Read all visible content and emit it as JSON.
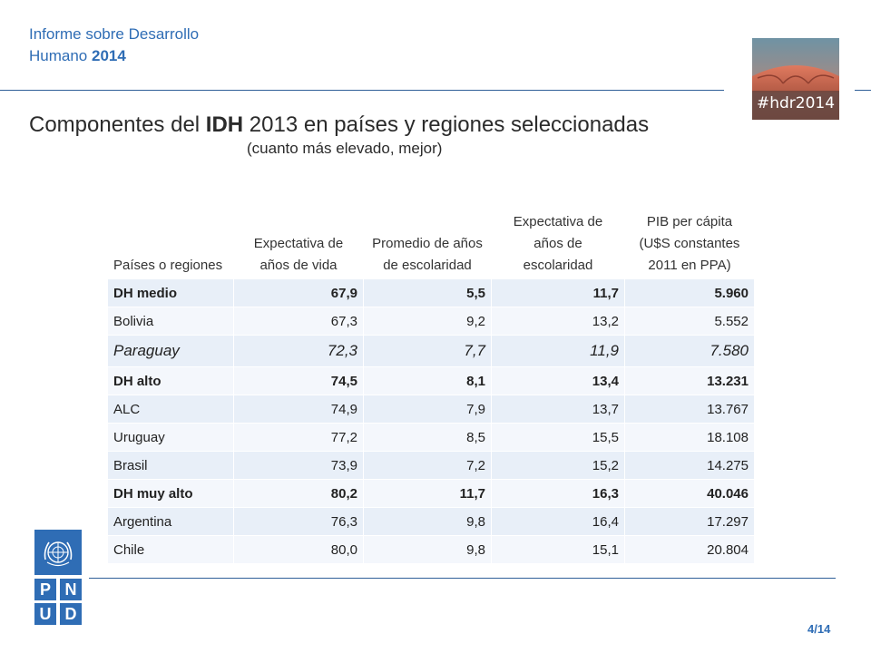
{
  "header": {
    "report_title_line1": "Informe sobre Desarrollo",
    "report_title_line2_prefix": "Humano ",
    "report_title_year": "2014",
    "badge_label": "#hdr2014"
  },
  "slide": {
    "title_prefix": "Componentes del ",
    "title_bold": "IDH",
    "title_suffix": " 2013 en países y regiones seleccionadas",
    "subtitle": "(cuanto más elevado, mejor)"
  },
  "table": {
    "headers": [
      "Países o regiones",
      "Expectativa de años de vida",
      "Promedio de años de escolaridad",
      "Expectativa de años de escolaridad",
      "PIB per cápita (U$S constantes 2011 en PPA)"
    ],
    "rows": [
      {
        "name": "DH medio",
        "life": "67,9",
        "mean_school": "5,5",
        "exp_school": "11,7",
        "gdp": "5.960",
        "style": "bold"
      },
      {
        "name": "Bolivia",
        "life": "67,3",
        "mean_school": "9,2",
        "exp_school": "13,2",
        "gdp": "5.552",
        "style": "normal"
      },
      {
        "name": "Paraguay",
        "life": "72,3",
        "mean_school": "7,7",
        "exp_school": "11,9",
        "gdp": "7.580",
        "style": "italic"
      },
      {
        "name": "DH alto",
        "life": "74,5",
        "mean_school": "8,1",
        "exp_school": "13,4",
        "gdp": "13.231",
        "style": "bold"
      },
      {
        "name": "ALC",
        "life": "74,9",
        "mean_school": "7,9",
        "exp_school": "13,7",
        "gdp": "13.767",
        "style": "normal"
      },
      {
        "name": "Uruguay",
        "life": "77,2",
        "mean_school": "8,5",
        "exp_school": "15,5",
        "gdp": "18.108",
        "style": "normal"
      },
      {
        "name": "Brasil",
        "life": "73,9",
        "mean_school": "7,2",
        "exp_school": "15,2",
        "gdp": "14.275",
        "style": "normal"
      },
      {
        "name": "DH muy alto",
        "life": "80,2",
        "mean_school": "11,7",
        "exp_school": "16,3",
        "gdp": "40.046",
        "style": "bold"
      },
      {
        "name": "Argentina",
        "life": "76,3",
        "mean_school": "9,8",
        "exp_school": "16,4",
        "gdp": "17.297",
        "style": "normal"
      },
      {
        "name": "Chile",
        "life": "80,0",
        "mean_school": "9,8",
        "exp_school": "15,1",
        "gdp": "20.804",
        "style": "normal"
      }
    ]
  },
  "logo": {
    "letters": [
      "P",
      "N",
      "U",
      "D"
    ],
    "brand_color": "#2f6db5"
  },
  "footer": {
    "page_number": "4/14"
  }
}
